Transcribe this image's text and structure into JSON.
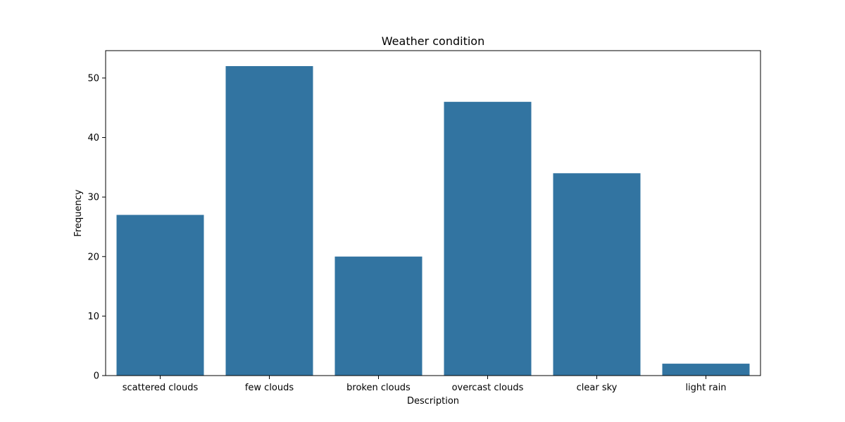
{
  "chart_data": {
    "type": "bar",
    "title": "Weather condition",
    "xlabel": "Description",
    "ylabel": "Frequency",
    "categories": [
      "scattered clouds",
      "few clouds",
      "broken clouds",
      "overcast clouds",
      "clear sky",
      "light rain"
    ],
    "values": [
      27,
      52,
      20,
      46,
      34,
      2
    ],
    "ylim": [
      0,
      54.6
    ],
    "yticks": [
      0,
      10,
      20,
      30,
      40,
      50
    ],
    "grid": false,
    "bar_color": "#3274a1"
  }
}
